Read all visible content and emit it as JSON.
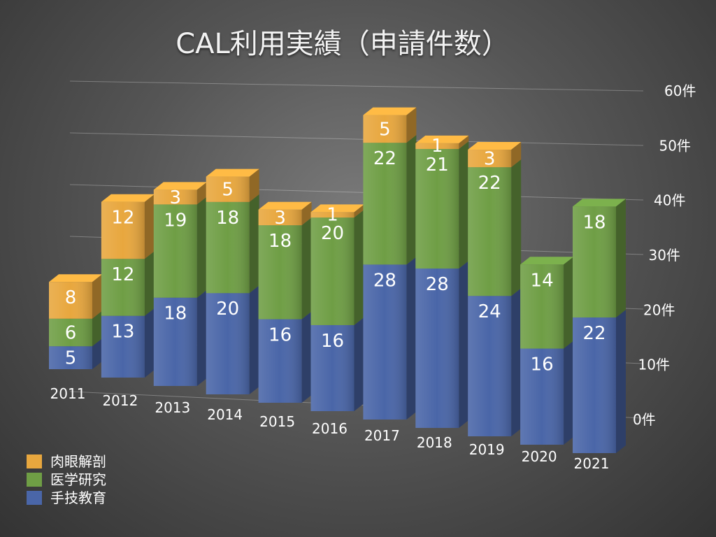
{
  "chart_data": {
    "type": "bar",
    "stacked": true,
    "title": "CAL利用実績（申請件数）",
    "categories": [
      "2011",
      "2012",
      "2013",
      "2014",
      "2015",
      "2016",
      "2017",
      "2018",
      "2019",
      "2020",
      "2021"
    ],
    "series": [
      {
        "name": "手技教育",
        "color": "#4a66a8",
        "values": [
          5,
          13,
          18,
          20,
          16,
          16,
          28,
          28,
          24,
          16,
          22
        ]
      },
      {
        "name": "医学研究",
        "color": "#6f9e45",
        "values": [
          6,
          12,
          19,
          18,
          18,
          20,
          22,
          21,
          22,
          14,
          18
        ]
      },
      {
        "name": "肉眼解剖",
        "color": "#e8a73e",
        "values": [
          8,
          12,
          3,
          5,
          3,
          1,
          5,
          1,
          3,
          0,
          0
        ]
      }
    ],
    "ylim": [
      0,
      60
    ],
    "yticks": [
      0,
      10,
      20,
      30,
      40,
      50,
      60
    ],
    "ytick_labels": [
      "0件",
      "10件",
      "20件",
      "30件",
      "40件",
      "50件",
      "60件"
    ],
    "grid": true,
    "legend": "bottom-left",
    "perspective": "3d"
  }
}
